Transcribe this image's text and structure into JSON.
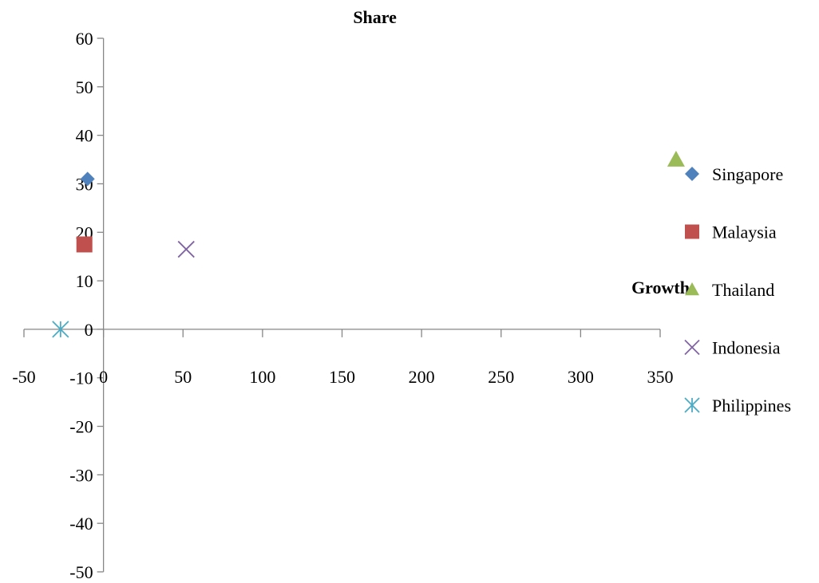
{
  "chart_data": {
    "type": "scatter",
    "xlabel": "Growth",
    "ylabel": "Share",
    "xlim": [
      -50,
      350
    ],
    "ylim": [
      -50,
      60
    ],
    "x_ticks": [
      "-50",
      "0",
      "50",
      "100",
      "150",
      "200",
      "250",
      "300",
      "350"
    ],
    "y_ticks": [
      "60",
      "50",
      "40",
      "30",
      "20",
      "10",
      "0",
      "-10",
      "-20",
      "-30",
      "-40",
      "-50"
    ],
    "grid": false,
    "legend_position": "right",
    "series": [
      {
        "name": "Singapore",
        "marker": "diamond",
        "color": "#4f81bd",
        "points": [
          {
            "x": -10,
            "y": 31
          }
        ]
      },
      {
        "name": "Malaysia",
        "marker": "square",
        "color": "#c0504d",
        "points": [
          {
            "x": -12,
            "y": 17.5
          }
        ]
      },
      {
        "name": "Thailand",
        "marker": "triangle",
        "color": "#9bbb59",
        "points": [
          {
            "x": 360,
            "y": 35
          }
        ]
      },
      {
        "name": "Indonesia",
        "marker": "x",
        "color": "#8064a2",
        "points": [
          {
            "x": 52,
            "y": 16.5
          }
        ]
      },
      {
        "name": "Philippines",
        "marker": "star",
        "color": "#4bacc6",
        "points": [
          {
            "x": -27,
            "y": 0
          }
        ]
      }
    ]
  }
}
